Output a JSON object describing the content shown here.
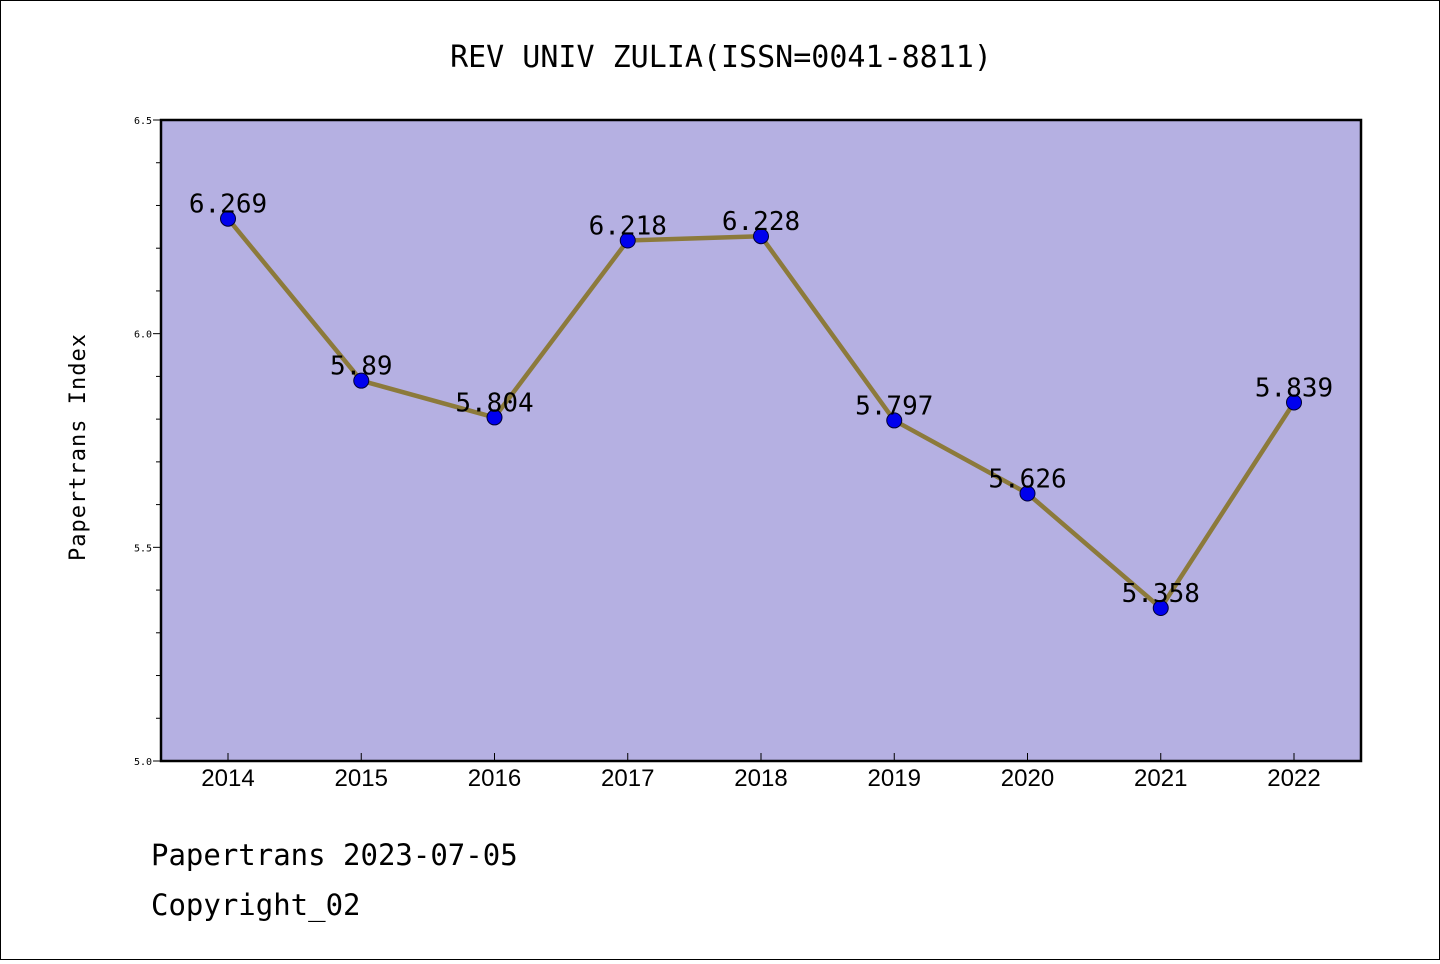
{
  "chart_data": {
    "type": "line",
    "title": "REV UNIV ZULIA(ISSN=0041-8811)",
    "xlabel": "",
    "ylabel": "Papertrans Index",
    "ylim": [
      5.0,
      6.5
    ],
    "yticks": [
      "5.0",
      "5.5",
      "6.0",
      "6.5"
    ],
    "categories": [
      "2014",
      "2015",
      "2016",
      "2017",
      "2018",
      "2019",
      "2020",
      "2021",
      "2022"
    ],
    "values": [
      6.269,
      5.89,
      5.804,
      6.218,
      6.228,
      5.797,
      5.626,
      5.358,
      5.839
    ],
    "value_labels": [
      "6.269",
      "5.89",
      "5.804",
      "6.218",
      "6.228",
      "5.797",
      "5.626",
      "5.358",
      "5.839"
    ],
    "grid": false,
    "colors": {
      "plot_background": "#b5b0e2",
      "line": "#8c7a3b",
      "marker": "#0000ee"
    }
  },
  "footer": {
    "line1": "Papertrans 2023-07-05",
    "line2": "Copyright_02"
  }
}
